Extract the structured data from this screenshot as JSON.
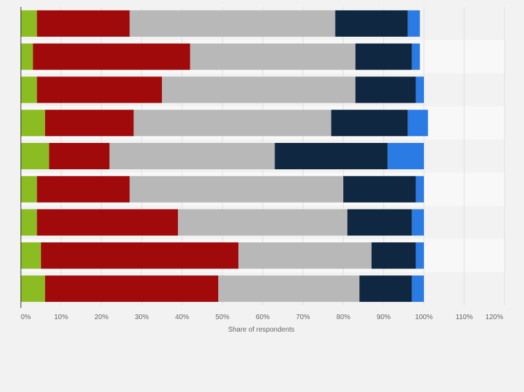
{
  "chart_data": {
    "type": "bar",
    "orientation": "horizontal",
    "stacked": true,
    "xlabel": "Share of respondents",
    "xlim": [
      0,
      120
    ],
    "x_ticks": [
      "0%",
      "10%",
      "20%",
      "30%",
      "40%",
      "50%",
      "60%",
      "70%",
      "80%",
      "90%",
      "100%",
      "110%",
      "120%"
    ],
    "grid": true,
    "legend": "none",
    "colors": [
      "#8bbc21",
      "#a10a0a",
      "#b8b8b8",
      "#0f2740",
      "#2b7be4"
    ],
    "categories": [
      "",
      "",
      "",
      "",
      "",
      "",
      "",
      "",
      ""
    ],
    "series": [
      {
        "values": [
          4,
          3,
          4,
          6,
          7,
          4,
          4,
          5,
          6
        ]
      },
      {
        "values": [
          23,
          39,
          31,
          22,
          15,
          23,
          35,
          49,
          43
        ]
      },
      {
        "values": [
          51,
          41,
          48,
          49,
          41,
          53,
          42,
          33,
          35
        ]
      },
      {
        "values": [
          18,
          14,
          15,
          19,
          28,
          18,
          16,
          11,
          13
        ]
      },
      {
        "values": [
          3,
          2,
          2,
          5,
          9,
          2,
          3,
          2,
          3
        ]
      }
    ]
  }
}
